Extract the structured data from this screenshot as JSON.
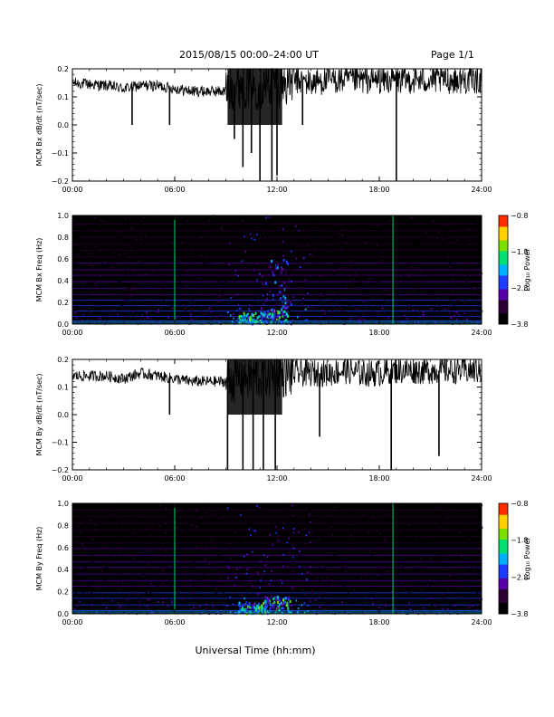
{
  "header": {
    "title": "2015/08/15  00:00–24:00 UT",
    "page": "Page 1/1"
  },
  "footer": {
    "xlabel": "Universal Time (hh:mm)"
  },
  "colors": {
    "trace": "#000000",
    "colormap": [
      "#000000",
      "#2a0033",
      "#5a00a8",
      "#1f3cff",
      "#00b0ff",
      "#00e070",
      "#7be000",
      "#ffd000",
      "#ff2a00"
    ]
  },
  "chart_data": [
    {
      "type": "line",
      "ylabel": "MCM Bx dB/dt (nT/sec)",
      "xlim": [
        0,
        24
      ],
      "ylim": [
        -0.2,
        0.2
      ],
      "yticks": [
        "0.2",
        "0.1",
        "0.0",
        "−0.1",
        "−0.2"
      ],
      "xticks": [
        "00:00",
        "06:00",
        "12:00",
        "18:00",
        "24:00"
      ],
      "series": [
        {
          "x": [
            0,
            2,
            3,
            4,
            5,
            6,
            7,
            8,
            9,
            9.5,
            10,
            10.5,
            11,
            11.5,
            12,
            13,
            14,
            15,
            16,
            17,
            18,
            19,
            20,
            21,
            22,
            23,
            24
          ],
          "y": [
            0.15,
            0.14,
            0.13,
            0.14,
            0.14,
            0.13,
            0.12,
            0.12,
            0.12,
            0.14,
            0.15,
            0.14,
            0.14,
            0.15,
            0.15,
            0.16,
            0.15,
            0.16,
            0.16,
            0.16,
            0.16,
            0.16,
            0.16,
            0.16,
            0.16,
            0.16,
            0.16
          ]
        }
      ],
      "events": [
        {
          "t": 3.5,
          "min": 0.0
        },
        {
          "t": 5.7,
          "min": 0.0
        },
        {
          "t": 9.5,
          "min": -0.05
        },
        {
          "t": 10.0,
          "min": -0.15
        },
        {
          "t": 10.5,
          "min": -0.1
        },
        {
          "t": 11.0,
          "min": -0.2
        },
        {
          "t": 11.7,
          "min": -0.2
        },
        {
          "t": 12.0,
          "min": -0.18
        },
        {
          "t": 13.5,
          "min": 0.0
        },
        {
          "t": 19.0,
          "min": -0.2
        }
      ]
    },
    {
      "type": "heatmap",
      "ylabel": "MCM Bx Freq (Hz)",
      "xlim": [
        0,
        24
      ],
      "ylim": [
        0,
        1.0
      ],
      "yticks": [
        "1.0",
        "0.8",
        "0.6",
        "0.4",
        "0.2",
        "0.0"
      ],
      "xticks": [
        "00:00",
        "06:00",
        "12:00",
        "18:00",
        "24:00"
      ],
      "colorbar": {
        "label": "Log₁₀ Power",
        "ticks": [
          "−0.8",
          "−1.8",
          "−2.8",
          "−3.8"
        ],
        "range": [
          -3.8,
          -0.8
        ]
      },
      "lines_hz": [
        0.03,
        0.07,
        0.12,
        0.17,
        0.22,
        0.27,
        0.33,
        0.39,
        0.45,
        0.5,
        0.56,
        0.62,
        0.68,
        0.74,
        0.8,
        0.86,
        0.92,
        0.98
      ],
      "bursts": [
        {
          "t": 10.5,
          "hz": 0.05,
          "power": -1.5
        },
        {
          "t": 11.8,
          "hz": 0.08,
          "power": -1.6
        },
        {
          "t": 12.0,
          "hz": 0.3,
          "power": -2.3
        }
      ],
      "spikes_t": [
        6.0,
        18.8
      ]
    },
    {
      "type": "line",
      "ylabel": "MCM By dB/dt (nT/sec)",
      "xlim": [
        0,
        24
      ],
      "ylim": [
        -0.2,
        0.2
      ],
      "yticks": [
        "0.2",
        "0.1",
        "0.0",
        "−0.1",
        "−0.2"
      ],
      "xticks": [
        "00:00",
        "06:00",
        "12:00",
        "18:00",
        "24:00"
      ],
      "series": [
        {
          "x": [
            0,
            2,
            3,
            4,
            5,
            6,
            7,
            8,
            9,
            9.5,
            10,
            10.5,
            11,
            11.5,
            12,
            13,
            14,
            15,
            16,
            17,
            18,
            19,
            20,
            21,
            22,
            23,
            24
          ],
          "y": [
            0.14,
            0.14,
            0.13,
            0.15,
            0.14,
            0.13,
            0.12,
            0.12,
            0.12,
            0.13,
            0.14,
            0.14,
            0.14,
            0.15,
            0.15,
            0.15,
            0.15,
            0.15,
            0.16,
            0.15,
            0.15,
            0.16,
            0.16,
            0.16,
            0.16,
            0.16,
            0.16
          ]
        }
      ],
      "events": [
        {
          "t": 5.7,
          "min": 0.0
        },
        {
          "t": 9.1,
          "min": -0.2
        },
        {
          "t": 10.0,
          "min": -0.2
        },
        {
          "t": 10.6,
          "min": -0.2
        },
        {
          "t": 11.2,
          "min": -0.2
        },
        {
          "t": 11.9,
          "min": -0.2
        },
        {
          "t": 14.5,
          "min": -0.08
        },
        {
          "t": 18.7,
          "min": -0.2
        },
        {
          "t": 21.5,
          "min": -0.15
        }
      ]
    },
    {
      "type": "heatmap",
      "ylabel": "MCM By Freq (Hz)",
      "xlim": [
        0,
        24
      ],
      "ylim": [
        0,
        1.0
      ],
      "yticks": [
        "1.0",
        "0.8",
        "0.6",
        "0.4",
        "0.2",
        "0.0"
      ],
      "xticks": [
        "00:00",
        "06:00",
        "12:00",
        "18:00",
        "24:00"
      ],
      "colorbar": {
        "label": "Log₁₀ Power",
        "ticks": [
          "−0.8",
          "−1.8",
          "−2.8",
          "−3.8"
        ],
        "range": [
          -3.8,
          -0.8
        ]
      },
      "lines_hz": [
        0.03,
        0.08,
        0.14,
        0.19,
        0.25,
        0.3,
        0.36,
        0.42,
        0.47,
        0.53,
        0.59,
        0.64,
        0.7,
        0.76,
        0.82,
        0.88,
        0.94,
        0.98
      ],
      "bursts": [
        {
          "t": 10.5,
          "hz": 0.05,
          "power": -1.6
        },
        {
          "t": 12.0,
          "hz": 0.08,
          "power": -1.7
        }
      ],
      "spikes_t": [
        6.0,
        18.8
      ]
    }
  ]
}
